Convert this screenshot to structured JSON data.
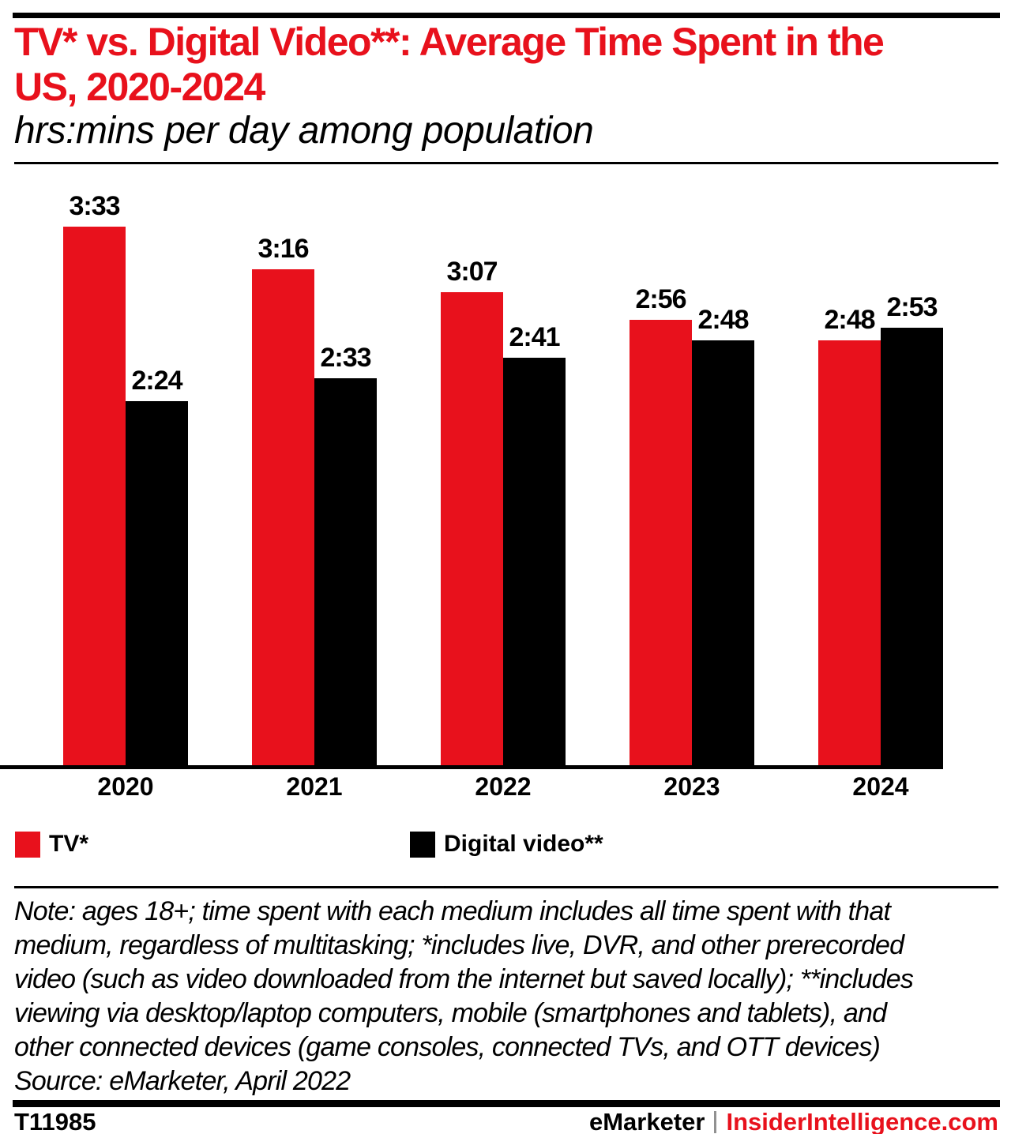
{
  "title": {
    "line1": "TV* vs. Digital Video**: Average Time Spent in the",
    "line2": "US, 2020-2024"
  },
  "subtitle": "hrs:mins per day among population",
  "colors": {
    "red": "#e8111c",
    "black": "#000000",
    "divider_gray": "#919191"
  },
  "chart_data": {
    "type": "bar",
    "title": "TV* vs. Digital Video**: Average Time Spent in the US, 2020-2024",
    "subtitle": "hrs:mins per day among population",
    "unit": "hrs:mins per day among population",
    "categories": [
      "2020",
      "2021",
      "2022",
      "2023",
      "2024"
    ],
    "series": [
      {
        "name": "TV*",
        "color": "#e8111c",
        "labels": [
          "3:33",
          "3:16",
          "3:07",
          "2:56",
          "2:48"
        ],
        "minutes": [
          213,
          196,
          187,
          176,
          168
        ]
      },
      {
        "name": "Digital video**",
        "color": "#000000",
        "labels": [
          "2:24",
          "2:33",
          "2:41",
          "2:48",
          "2:53"
        ],
        "minutes": [
          144,
          153,
          161,
          168,
          173
        ]
      }
    ],
    "ylim_minutes": [
      0,
      240
    ],
    "grid": false,
    "legend_position": "bottom"
  },
  "note": {
    "lines": [
      "Note: ages 18+; time spent with each medium includes all time spent with that",
      "medium, regardless of multitasking; *includes live, DVR, and other prerecorded",
      "video (such as video downloaded from the internet but saved locally); **includes",
      "viewing via desktop/laptop computers, mobile (smartphones and tablets), and",
      "other connected devices (game consoles, connected TVs, and OTT devices)",
      "Source: eMarketer, April 2022"
    ]
  },
  "footer": {
    "chart_id": "T11985",
    "brand": "eMarketer",
    "divider": "|",
    "site": "InsiderIntelligence.com"
  }
}
